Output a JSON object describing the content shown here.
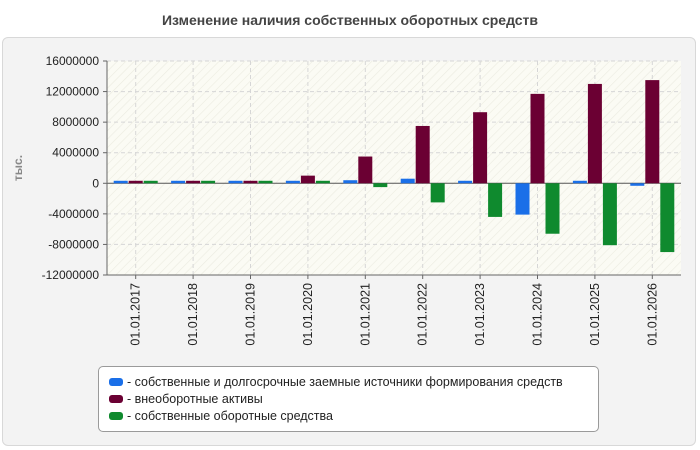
{
  "chart_data": {
    "type": "bar",
    "title": "Изменение наличия собственных оборотных средств",
    "ylabel": "тыс.",
    "xlabel": "",
    "ylim": [
      -12000000,
      16000000
    ],
    "yticks": [
      16000000,
      12000000,
      8000000,
      4000000,
      0,
      -4000000,
      -8000000,
      -12000000
    ],
    "ytick_labels": [
      "16000000",
      "12000000",
      "8000000",
      "4000000",
      "0",
      "-4000000",
      "-8000000",
      "-12000000"
    ],
    "categories": [
      "01.01.2017",
      "01.01.2018",
      "01.01.2019",
      "01.01.2020",
      "01.01.2021",
      "01.01.2022",
      "01.01.2023",
      "01.01.2024",
      "01.01.2025",
      "01.01.2026"
    ],
    "series": [
      {
        "name": "- собственные и долгосрочные заемные источники формирования средств",
        "color": "#1a6fe8",
        "values": [
          200000,
          200000,
          200000,
          200000,
          400000,
          600000,
          100000,
          -4100000,
          300000,
          -200000
        ]
      },
      {
        "name": "- внеоборотные активы",
        "color": "#6b0033",
        "values": [
          200000,
          200000,
          200000,
          1000000,
          3500000,
          7500000,
          9300000,
          11700000,
          13000000,
          13500000
        ]
      },
      {
        "name": "- собственные оборотные средства",
        "color": "#0f8a2e",
        "values": [
          200000,
          200000,
          200000,
          200000,
          -500000,
          -2500000,
          -4400000,
          -6600000,
          -8100000,
          -9000000
        ]
      }
    ],
    "grid": true,
    "legend_position": "bottom"
  }
}
